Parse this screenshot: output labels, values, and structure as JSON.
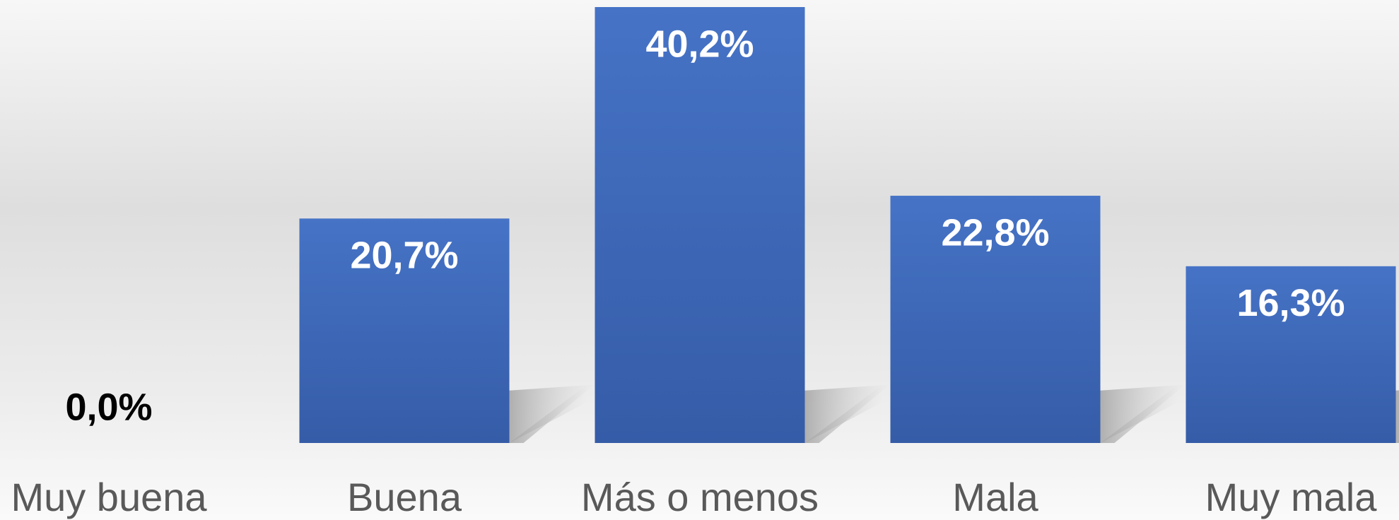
{
  "chart_data": {
    "type": "bar",
    "categories": [
      "Muy buena",
      "Buena",
      "Más o menos",
      "Mala",
      "Muy mala"
    ],
    "values": [
      0.0,
      20.7,
      40.2,
      22.8,
      16.3
    ],
    "value_labels": [
      "0,0%",
      "20,7%",
      "40,2%",
      "22,8%",
      "16,3%"
    ],
    "color": "#4472c4"
  }
}
